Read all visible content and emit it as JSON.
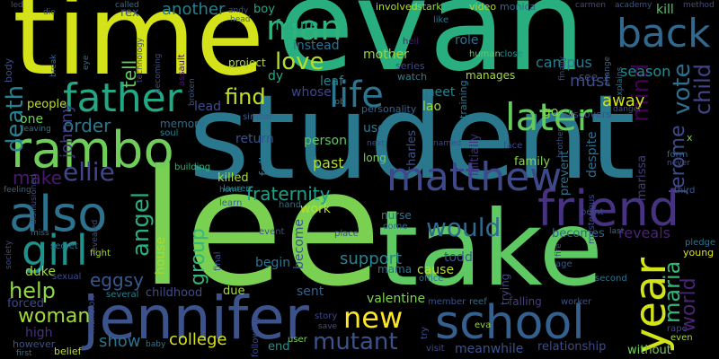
{
  "words": [
    {
      "text": "time",
      "color": "#d4e21a"
    },
    {
      "text": "evan",
      "color": "#29af7f"
    },
    {
      "text": "student",
      "color": "#2a788e"
    },
    {
      "text": "lee",
      "color": "#7ad151"
    },
    {
      "text": "take",
      "color": "#5ec962"
    },
    {
      "text": "rambo",
      "color": "#6ece58"
    },
    {
      "text": "jennifer",
      "color": "#3b528b"
    },
    {
      "text": "friend",
      "color": "#46327e"
    },
    {
      "text": "school",
      "color": "#355f8d"
    },
    {
      "text": "father",
      "color": "#22a884"
    },
    {
      "text": "also",
      "color": "#2c728e"
    },
    {
      "text": "later",
      "color": "#65cb5e"
    },
    {
      "text": "matthew",
      "color": "#3e4989"
    },
    {
      "text": "year",
      "color": "#d2e21b"
    },
    {
      "text": "man",
      "color": "#2fb47c"
    },
    {
      "text": "back",
      "color": "#31688e"
    },
    {
      "text": "life",
      "color": "#2b758e"
    },
    {
      "text": "girl",
      "color": "#20928c"
    },
    {
      "text": "new",
      "color": "#fde725"
    },
    {
      "text": "mutant",
      "color": "#3b528b"
    },
    {
      "text": "would",
      "color": "#31688e"
    },
    {
      "text": "love",
      "color": "#b5de2b"
    },
    {
      "text": "find",
      "color": "#c2df23"
    },
    {
      "text": "vote",
      "color": "#2e6e8e"
    },
    {
      "text": "mind",
      "color": "#440154"
    },
    {
      "text": "death",
      "color": "#26828e"
    },
    {
      "text": "ellie",
      "color": "#404688"
    },
    {
      "text": "angel",
      "color": "#27ad81"
    },
    {
      "text": "group",
      "color": "#35b779"
    },
    {
      "text": "fraternity",
      "color": "#1fa088"
    },
    {
      "text": "maria",
      "color": "#35b779"
    },
    {
      "text": "world",
      "color": "#482475"
    },
    {
      "text": "jerome",
      "color": "#3e4a89"
    },
    {
      "text": "child",
      "color": "#414487"
    },
    {
      "text": "order",
      "color": "#2a788e"
    },
    {
      "text": "tell",
      "color": "#65cb5e"
    },
    {
      "text": "johnny",
      "color": "#443a83"
    },
    {
      "text": "help",
      "color": "#8fd744"
    },
    {
      "text": "woman",
      "color": "#a0da39"
    },
    {
      "text": "make",
      "color": "#481a6c"
    },
    {
      "text": "eggsy",
      "color": "#38588c"
    },
    {
      "text": "college",
      "color": "#d8e219"
    },
    {
      "text": "show",
      "color": "#2c728e"
    },
    {
      "text": "support",
      "color": "#25848e"
    },
    {
      "text": "another",
      "color": "#26828e"
    },
    {
      "text": "future",
      "color": "#24aa83"
    },
    {
      "text": "killed",
      "color": "#a5db36"
    },
    {
      "text": "past",
      "color": "#b0dd2f"
    },
    {
      "text": "person",
      "color": "#5ec962"
    },
    {
      "text": "season",
      "color": "#228c8d"
    },
    {
      "text": "campus",
      "color": "#297b8e"
    },
    {
      "text": "reveals",
      "color": "#482475"
    },
    {
      "text": "mother",
      "color": "#95d840"
    },
    {
      "text": "instead",
      "color": "#2d708e"
    },
    {
      "text": "whose",
      "color": "#3f4788"
    },
    {
      "text": "meet",
      "color": "#25838e"
    },
    {
      "text": "lao",
      "color": "#9bd93c"
    },
    {
      "text": "must",
      "color": "#3e4c8a"
    },
    {
      "text": "away",
      "color": "#d2e21b"
    },
    {
      "text": "see",
      "color": "#3d4e8a"
    },
    {
      "text": "go",
      "color": "#8bd646"
    },
    {
      "text": "kill",
      "color": "#54c568"
    },
    {
      "text": "role",
      "color": "#2c728e"
    },
    {
      "text": "video",
      "color": "#addc30"
    },
    {
      "text": "monica",
      "color": "#31668e"
    },
    {
      "text": "project",
      "color": "#addc30"
    },
    {
      "text": "boy",
      "color": "#22a884"
    },
    {
      "text": "dy",
      "color": "#22a884"
    },
    {
      "text": "leaf",
      "color": "#26828e"
    },
    {
      "text": "rex",
      "color": "#3b528b"
    },
    {
      "text": "duke",
      "color": "#a2da37"
    },
    {
      "text": "people",
      "color": "#bddf26"
    },
    {
      "text": "one",
      "color": "#6ece58"
    },
    {
      "text": "memory",
      "color": "#2e6d8e"
    },
    {
      "text": "lead",
      "color": "#3e4c8a"
    },
    {
      "text": "return",
      "color": "#3b528b"
    },
    {
      "text": "fall",
      "color": "#2a768e"
    },
    {
      "text": "begin",
      "color": "#2c738e"
    },
    {
      "text": "work",
      "color": "#b5de2b"
    },
    {
      "text": "become",
      "color": "#39568c"
    },
    {
      "text": "sent",
      "color": "#34618d"
    },
    {
      "text": "valentine",
      "color": "#7fd34e"
    },
    {
      "text": "end",
      "color": "#21918c"
    },
    {
      "text": "childhood",
      "color": "#3d4d8a"
    },
    {
      "text": "due",
      "color": "#a8db34"
    },
    {
      "text": "house",
      "color": "#a5db36"
    },
    {
      "text": "high",
      "color": "#46327e"
    },
    {
      "text": "forced",
      "color": "#3f4889"
    },
    {
      "text": "mama",
      "color": "#2d708e"
    },
    {
      "text": "cause",
      "color": "#b5de2b"
    },
    {
      "text": "todd",
      "color": "#39568c"
    },
    {
      "text": "charles",
      "color": "#3b528b"
    },
    {
      "text": "long",
      "color": "#73d056"
    },
    {
      "text": "family",
      "color": "#86d549"
    },
    {
      "text": "despite",
      "color": "#2e6d8e"
    },
    {
      "text": "marissa",
      "color": "#443a83"
    },
    {
      "text": "becomes",
      "color": "#31668e"
    },
    {
      "text": "relationship",
      "color": "#3e4a89"
    },
    {
      "text": "meanwhile",
      "color": "#3b528b"
    },
    {
      "text": "without",
      "color": "#6ece58"
    },
    {
      "text": "trying",
      "color": "#3e4989"
    },
    {
      "text": "prevent",
      "color": "#2c738e"
    },
    {
      "text": "initially",
      "color": "#46307e"
    },
    {
      "text": "use",
      "color": "#2a778e"
    },
    {
      "text": "manages",
      "color": "#a2da37"
    },
    {
      "text": "personality",
      "color": "#34608d"
    },
    {
      "text": "training",
      "color": "#297a8e"
    },
    {
      "text": "watch",
      "color": "#26828e"
    },
    {
      "text": "series",
      "color": "#3e4a89"
    },
    {
      "text": "human",
      "color": "#5cc863"
    },
    {
      "text": "close",
      "color": "#20928c"
    },
    {
      "text": "stark",
      "color": "#8fd744"
    },
    {
      "text": "involved",
      "color": "#b5de2b"
    },
    {
      "text": "hell",
      "color": "#481a6c"
    },
    {
      "text": "like",
      "color": "#2a778e"
    },
    {
      "text": "face",
      "color": "#3e4c8a"
    },
    {
      "text": "discovers",
      "color": "#3b528b"
    },
    {
      "text": "similar",
      "color": "#34618d"
    },
    {
      "text": "soul",
      "color": "#25838e"
    },
    {
      "text": "assault",
      "color": "#471365"
    },
    {
      "text": "building",
      "color": "#35b779"
    },
    {
      "text": "lauren",
      "color": "#26828e"
    },
    {
      "text": "home",
      "color": "#297a8e"
    },
    {
      "text": "learn",
      "color": "#32648e"
    },
    {
      "text": "hand",
      "color": "#2e6e8e"
    },
    {
      "text": "event",
      "color": "#3e4c8a"
    },
    {
      "text": "place",
      "color": "#3b528b"
    },
    {
      "text": "come",
      "color": "#31688e"
    },
    {
      "text": "nurse",
      "color": "#2a768e"
    },
    {
      "text": "office",
      "color": "#2c728e"
    },
    {
      "text": "member",
      "color": "#3a538b"
    },
    {
      "text": "reef",
      "color": "#2e6e8e"
    },
    {
      "text": "falling",
      "color": "#433d84"
    },
    {
      "text": "worker",
      "color": "#3b528b"
    },
    {
      "text": "age",
      "color": "#39568c"
    },
    {
      "text": "second",
      "color": "#2c738e"
    },
    {
      "text": "point",
      "color": "#3e4a89"
    },
    {
      "text": "third",
      "color": "#38588c"
    },
    {
      "text": "never",
      "color": "#3d4e8a"
    },
    {
      "text": "form",
      "color": "#32648e"
    },
    {
      "text": "rape",
      "color": "#404688"
    },
    {
      "text": "even",
      "color": "#a0da39"
    },
    {
      "text": "young",
      "color": "#d8e219"
    },
    {
      "text": "pledge",
      "color": "#2c738e"
    },
    {
      "text": "last",
      "color": "#31688e"
    },
    {
      "text": "secret",
      "color": "#2c728e"
    },
    {
      "text": "fight",
      "color": "#aadc32"
    },
    {
      "text": "sexual",
      "color": "#3e4c8a"
    },
    {
      "text": "several",
      "color": "#26828e"
    },
    {
      "text": "mansion",
      "color": "#3e4989"
    },
    {
      "text": "however",
      "color": "#3a538b"
    },
    {
      "text": "belief",
      "color": "#bddf26"
    },
    {
      "text": "first",
      "color": "#2c738e"
    },
    {
      "text": "baby",
      "color": "#2a788e"
    },
    {
      "text": "following",
      "color": "#3d4d8a"
    },
    {
      "text": "user",
      "color": "#7ad151"
    },
    {
      "text": "save",
      "color": "#3b528b"
    },
    {
      "text": "story",
      "color": "#3e4989"
    },
    {
      "text": "eva",
      "color": "#9bd93c"
    },
    {
      "text": "visit",
      "color": "#3e4989"
    },
    {
      "text": "try",
      "color": "#3b528b"
    },
    {
      "text": "body",
      "color": "#3d4e8a"
    },
    {
      "text": "leaving",
      "color": "#2a778e"
    },
    {
      "text": "disillusioned",
      "color": "#3e4a89"
    },
    {
      "text": "feeling",
      "color": "#32648e"
    },
    {
      "text": "miss",
      "color": "#2c738e"
    },
    {
      "text": "society",
      "color": "#3e4c8a"
    },
    {
      "text": "break",
      "color": "#31688e"
    },
    {
      "text": "eye",
      "color": "#2c738e"
    },
    {
      "text": "technology",
      "color": "#3e4989"
    },
    {
      "text": "called",
      "color": "#2c738e"
    },
    {
      "text": "die",
      "color": "#3b528b"
    },
    {
      "text": "led",
      "color": "#3e4c8a"
    },
    {
      "text": "head",
      "color": "#31688e"
    },
    {
      "text": "andy",
      "color": "#3d4d8a"
    },
    {
      "text": "job",
      "color": "#26828e"
    },
    {
      "text": "carmen",
      "color": "#3e4989"
    },
    {
      "text": "academy",
      "color": "#3b528b"
    },
    {
      "text": "method",
      "color": "#3d4d8a"
    },
    {
      "text": "finally",
      "color": "#3e4c8a"
    },
    {
      "text": "explains",
      "color": "#2c738e"
    },
    {
      "text": "change",
      "color": "#31688e"
    },
    {
      "text": "danger",
      "color": "#3d4e8a"
    },
    {
      "text": "brother",
      "color": "#3b528b"
    },
    {
      "text": "named",
      "color": "#3e4989"
    },
    {
      "text": "next",
      "color": "#3e4c8a"
    },
    {
      "text": "broken",
      "color": "#3b528b"
    },
    {
      "text": "final",
      "color": "#3b528b"
    },
    {
      "text": "mysterious",
      "color": "#3d4d8a"
    },
    {
      "text": "x",
      "color": "#7ad151"
    },
    {
      "text": "fire",
      "color": "#3e4989"
    },
    {
      "text": "revealed",
      "color": "#3b528b"
    },
    {
      "text": "becoming",
      "color": "#3e4c8a"
    }
  ]
}
